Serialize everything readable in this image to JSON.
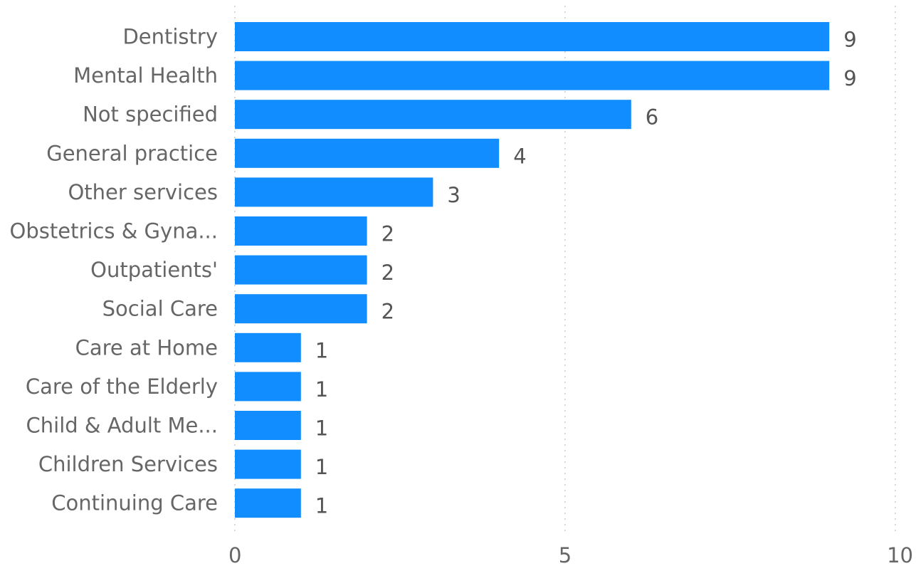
{
  "chart_data": {
    "type": "bar",
    "orientation": "horizontal",
    "categories": [
      "Dentistry",
      "Mental Health",
      "Not specified",
      "General practice",
      "Other services",
      "Obstetrics & Gyna...",
      "Outpatients'",
      "Social Care",
      "Care at Home",
      "Care of the Elderly",
      "Child & Adult Me...",
      "Children Services",
      "Continuing Care"
    ],
    "values": [
      9,
      9,
      6,
      4,
      3,
      2,
      2,
      2,
      1,
      1,
      1,
      1,
      1
    ],
    "data_labels": [
      "9",
      "9",
      "6",
      "4",
      "3",
      "2",
      "2",
      "2",
      "1",
      "1",
      "1",
      "1",
      "1"
    ],
    "x_ticks": [
      "0",
      "5",
      "10"
    ],
    "xlim": [
      0,
      10
    ],
    "grid": true,
    "bar_color": "#118DFF",
    "title": "",
    "xlabel": "",
    "ylabel": ""
  }
}
